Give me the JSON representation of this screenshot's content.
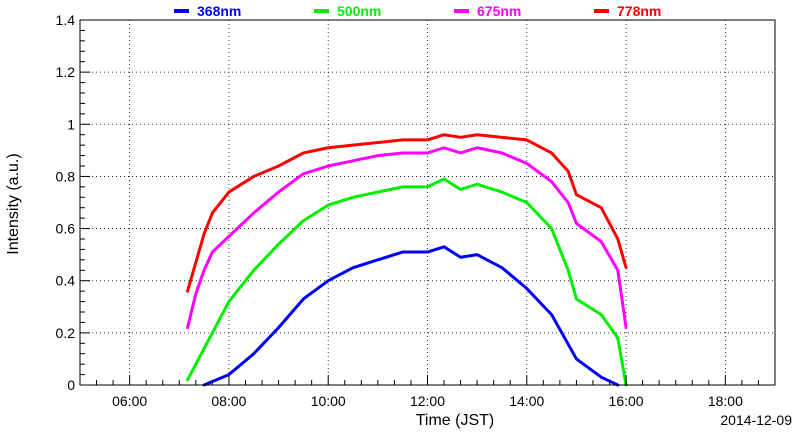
{
  "chart_data": {
    "type": "line",
    "title": "",
    "xlabel": "Time (JST)",
    "ylabel": "Intensity (a.u.)",
    "date_label": "2014-12-09",
    "xlim": [
      "05:00",
      "19:00"
    ],
    "ylim": [
      0,
      1.4
    ],
    "x_ticks": [
      "06:00",
      "08:00",
      "10:00",
      "12:00",
      "14:00",
      "16:00",
      "18:00"
    ],
    "y_ticks": [
      "0",
      "0.2",
      "0.4",
      "0.6",
      "0.8",
      "1",
      "1.2",
      "1.4"
    ],
    "grid": true,
    "legend_position": "top",
    "series": [
      {
        "name": "368nm",
        "color": "#0000ff",
        "points": [
          [
            "07:30",
            0.0
          ],
          [
            "08:00",
            0.04
          ],
          [
            "08:30",
            0.12
          ],
          [
            "09:00",
            0.22
          ],
          [
            "09:30",
            0.33
          ],
          [
            "10:00",
            0.4
          ],
          [
            "10:30",
            0.45
          ],
          [
            "11:00",
            0.48
          ],
          [
            "11:30",
            0.51
          ],
          [
            "12:00",
            0.51
          ],
          [
            "12:20",
            0.53
          ],
          [
            "12:40",
            0.49
          ],
          [
            "13:00",
            0.5
          ],
          [
            "13:30",
            0.45
          ],
          [
            "14:00",
            0.37
          ],
          [
            "14:30",
            0.27
          ],
          [
            "15:00",
            0.1
          ],
          [
            "15:30",
            0.03
          ],
          [
            "15:50",
            0.0
          ]
        ]
      },
      {
        "name": "500nm",
        "color": "#00ee00",
        "points": [
          [
            "07:10",
            0.02
          ],
          [
            "07:20",
            0.08
          ],
          [
            "07:40",
            0.2
          ],
          [
            "08:00",
            0.32
          ],
          [
            "08:30",
            0.44
          ],
          [
            "09:00",
            0.54
          ],
          [
            "09:30",
            0.63
          ],
          [
            "10:00",
            0.69
          ],
          [
            "10:30",
            0.72
          ],
          [
            "11:00",
            0.74
          ],
          [
            "11:30",
            0.76
          ],
          [
            "12:00",
            0.76
          ],
          [
            "12:20",
            0.79
          ],
          [
            "12:40",
            0.75
          ],
          [
            "13:00",
            0.77
          ],
          [
            "13:30",
            0.74
          ],
          [
            "14:00",
            0.7
          ],
          [
            "14:30",
            0.6
          ],
          [
            "14:50",
            0.44
          ],
          [
            "15:00",
            0.33
          ],
          [
            "15:30",
            0.27
          ],
          [
            "15:50",
            0.18
          ],
          [
            "16:00",
            0.0
          ]
        ]
      },
      {
        "name": "675nm",
        "color": "#ff00ff",
        "points": [
          [
            "07:10",
            0.22
          ],
          [
            "07:20",
            0.35
          ],
          [
            "07:30",
            0.44
          ],
          [
            "07:40",
            0.51
          ],
          [
            "08:00",
            0.57
          ],
          [
            "08:30",
            0.66
          ],
          [
            "09:00",
            0.74
          ],
          [
            "09:30",
            0.81
          ],
          [
            "10:00",
            0.84
          ],
          [
            "10:30",
            0.86
          ],
          [
            "11:00",
            0.88
          ],
          [
            "11:30",
            0.89
          ],
          [
            "12:00",
            0.89
          ],
          [
            "12:20",
            0.91
          ],
          [
            "12:40",
            0.89
          ],
          [
            "13:00",
            0.91
          ],
          [
            "13:30",
            0.89
          ],
          [
            "14:00",
            0.85
          ],
          [
            "14:30",
            0.78
          ],
          [
            "14:50",
            0.7
          ],
          [
            "15:00",
            0.62
          ],
          [
            "15:30",
            0.55
          ],
          [
            "15:50",
            0.44
          ],
          [
            "16:00",
            0.22
          ]
        ]
      },
      {
        "name": "778nm",
        "color": "#ff0000",
        "points": [
          [
            "07:10",
            0.36
          ],
          [
            "07:20",
            0.47
          ],
          [
            "07:30",
            0.58
          ],
          [
            "07:40",
            0.66
          ],
          [
            "08:00",
            0.74
          ],
          [
            "08:30",
            0.8
          ],
          [
            "09:00",
            0.84
          ],
          [
            "09:30",
            0.89
          ],
          [
            "10:00",
            0.91
          ],
          [
            "10:30",
            0.92
          ],
          [
            "11:00",
            0.93
          ],
          [
            "11:30",
            0.94
          ],
          [
            "12:00",
            0.94
          ],
          [
            "12:20",
            0.96
          ],
          [
            "12:40",
            0.95
          ],
          [
            "13:00",
            0.96
          ],
          [
            "13:30",
            0.95
          ],
          [
            "14:00",
            0.94
          ],
          [
            "14:30",
            0.89
          ],
          [
            "14:50",
            0.82
          ],
          [
            "15:00",
            0.73
          ],
          [
            "15:30",
            0.68
          ],
          [
            "15:50",
            0.56
          ],
          [
            "16:00",
            0.45
          ]
        ]
      }
    ]
  }
}
